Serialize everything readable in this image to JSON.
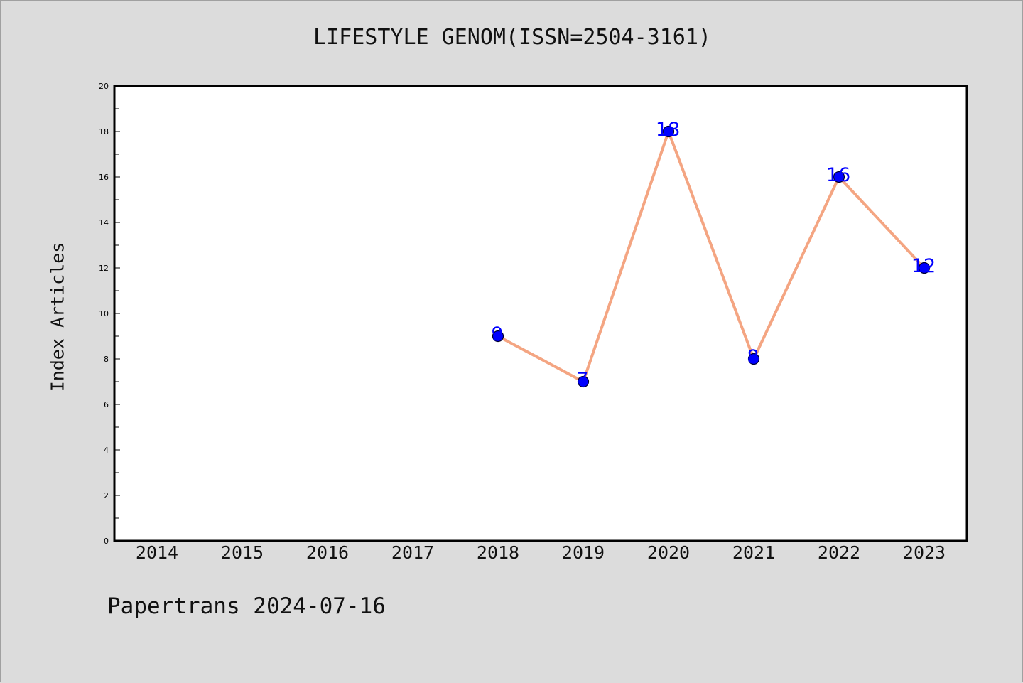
{
  "chart_data": {
    "type": "line",
    "title": "LIFESTYLE GENOM(ISSN=2504-3161)",
    "ylabel": "Index Articles",
    "xlabel": "",
    "categories": [
      "2014",
      "2015",
      "2016",
      "2017",
      "2018",
      "2019",
      "2020",
      "2021",
      "2022",
      "2023"
    ],
    "series": [
      {
        "x": [
          "2018",
          "2019",
          "2020",
          "2021",
          "2022",
          "2023"
        ],
        "values": [
          9,
          7,
          18,
          8,
          16,
          12
        ],
        "line_color": "#f4a582",
        "marker_color": "#0000ff",
        "label_color": "#0000ff"
      }
    ],
    "ylim": [
      0,
      20
    ],
    "yticks": [
      0,
      2,
      4,
      6,
      8,
      10,
      12,
      14,
      16,
      18,
      20
    ],
    "grid": false
  },
  "footer": "Papertrans 2024-07-16"
}
